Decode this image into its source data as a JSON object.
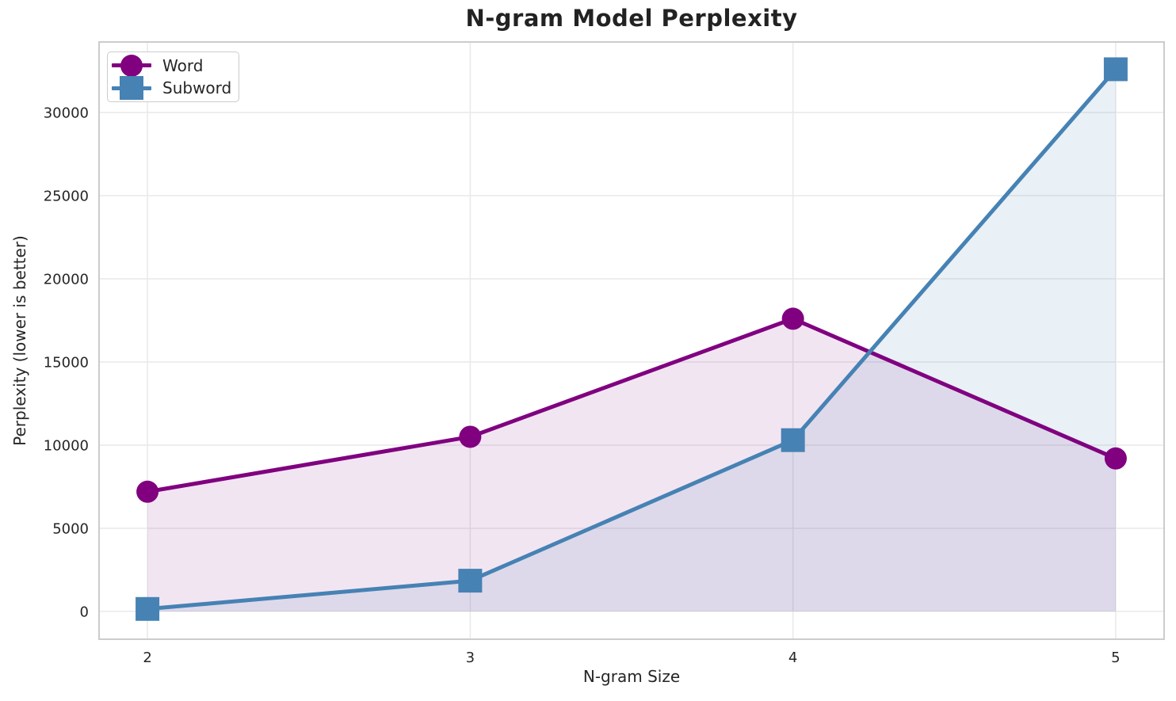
{
  "chart_data": {
    "type": "line",
    "title": "N-gram Model Perplexity",
    "xlabel": "N-gram Size",
    "ylabel": "Perplexity (lower is better)",
    "x": [
      2,
      3,
      4,
      5
    ],
    "series": [
      {
        "name": "Word",
        "values": [
          7200,
          10500,
          17600,
          9200
        ],
        "color": "#800080",
        "marker": "circle",
        "fill_opacity": 0.1
      },
      {
        "name": "Subword",
        "values": [
          150,
          1850,
          10300,
          32600
        ],
        "color": "#4682B4",
        "marker": "square",
        "fill_opacity": 0.12
      }
    ],
    "xticks": [
      2,
      3,
      4,
      5
    ],
    "yticks": [
      0,
      5000,
      10000,
      15000,
      20000,
      25000,
      30000
    ],
    "xlim": [
      1.85,
      5.15
    ],
    "ylim": [
      -1670,
      34240
    ],
    "grid": true,
    "fill_to_zero": true,
    "legend_position": "upper-left",
    "line_width": 5,
    "marker_size": 28,
    "grid_color": "#e9e9e9",
    "spine_color": "#cccccc",
    "text_color": "#262626"
  }
}
